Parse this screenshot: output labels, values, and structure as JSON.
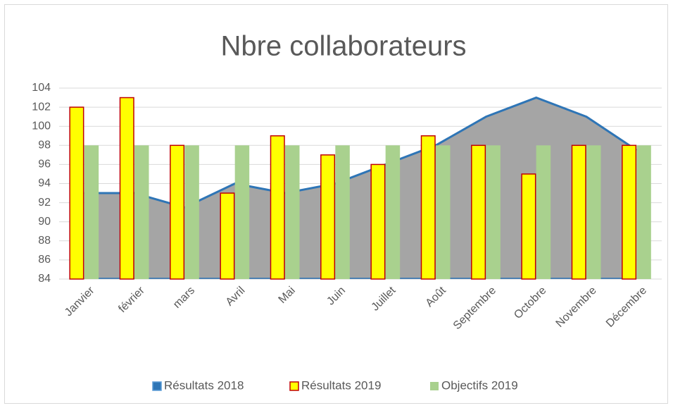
{
  "chart_data": {
    "type": "combo",
    "title": "Nbre collaborateurs",
    "categories": [
      "Janvier",
      "février",
      "mars",
      "Avril",
      "Mai",
      "Juin",
      "Juillet",
      "Août",
      "Septembre",
      "Octobre",
      "Novembre",
      "Décembre"
    ],
    "series": [
      {
        "name": "Résultats 2018",
        "type": "area",
        "color": "#2e75b6",
        "fill": "#a5a5a5",
        "values": [
          93,
          93,
          91.5,
          94,
          93,
          94,
          96,
          98,
          101,
          103,
          101,
          97.5
        ]
      },
      {
        "name": "Résultats 2019",
        "type": "bar",
        "color": "#ffff00",
        "edge": "#c00000",
        "values": [
          102,
          103,
          98,
          93,
          99,
          97,
          96,
          99,
          98,
          95,
          98,
          98
        ]
      },
      {
        "name": "Objectifs 2019",
        "type": "bar",
        "color": "#a9d18e",
        "values": [
          98,
          98,
          98,
          98,
          98,
          98,
          98,
          98,
          98,
          98,
          98,
          98
        ]
      }
    ],
    "ylim": [
      84,
      104
    ],
    "yticks": [
      84,
      86,
      88,
      90,
      92,
      94,
      96,
      98,
      100,
      102,
      104
    ],
    "grid": true,
    "legend": "bottom"
  }
}
